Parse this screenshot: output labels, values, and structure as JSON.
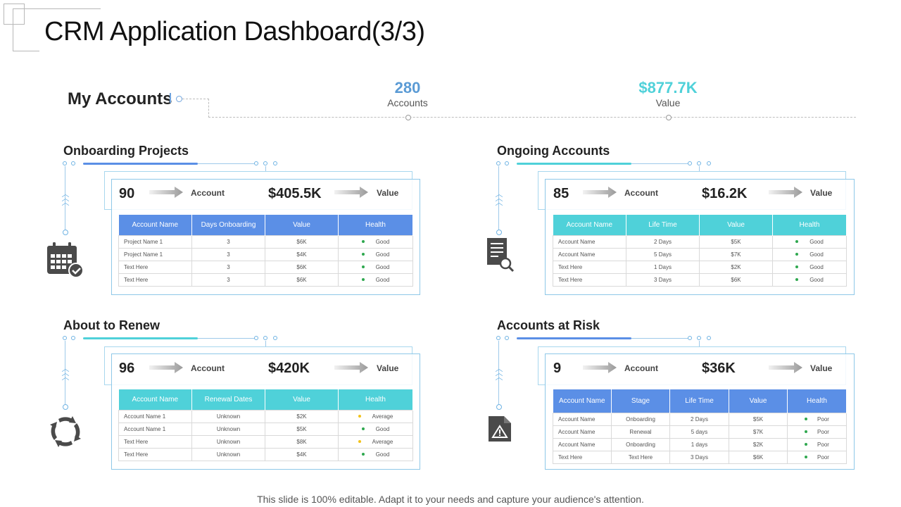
{
  "title": "CRM Application Dashboard(3/3)",
  "my_accounts": {
    "label": "My Accounts",
    "accounts_count": "280",
    "accounts_label": "Accounts",
    "value_amount": "$877.7K",
    "value_label": "Value"
  },
  "colors": {
    "blue": "#5b8fe6",
    "teal": "#4fd1d9",
    "green": "#2fa84f",
    "yellow": "#f2c21a",
    "count_blue": "#5b9bd5",
    "value_teal": "#4fd1d9"
  },
  "onboarding": {
    "title": "Onboarding Projects",
    "count": "90",
    "count_label": "Account",
    "amount": "$405.5K",
    "amount_label": "Value",
    "headers": [
      "Account Name",
      "Days Onboarding",
      "Value",
      "Health"
    ],
    "rows": [
      [
        "Project Name 1",
        "3",
        "$6K",
        "Good"
      ],
      [
        "Project Name 1",
        "3",
        "$4K",
        "Good"
      ],
      [
        "Text Here",
        "3",
        "$6K",
        "Good"
      ],
      [
        "Text Here",
        "3",
        "$6K",
        "Good"
      ]
    ],
    "icon": "calendar-check-icon"
  },
  "ongoing": {
    "title": "Ongoing Accounts",
    "count": "85",
    "count_label": "Account",
    "amount": "$16.2K",
    "amount_label": "Value",
    "headers": [
      "Account Name",
      "Life Time",
      "Value",
      "Health"
    ],
    "rows": [
      [
        "Account Name",
        "2 Days",
        "$5K",
        "Good"
      ],
      [
        "Account Name",
        "5 Days",
        "$7K",
        "Good"
      ],
      [
        "Text Here",
        "1 Days",
        "$2K",
        "Good"
      ],
      [
        "Text Here",
        "3 Days",
        "$6K",
        "Good"
      ]
    ],
    "icon": "document-search-icon"
  },
  "renew": {
    "title": "About to Renew",
    "count": "96",
    "count_label": "Account",
    "amount": "$420K",
    "amount_label": "Value",
    "headers": [
      "Account Name",
      "Renewal Dates",
      "Value",
      "Health"
    ],
    "rows": [
      [
        "Account Name 1",
        "Unknown",
        "$2K",
        "Average"
      ],
      [
        "Account Name 1",
        "Unknown",
        "$5K",
        "Good"
      ],
      [
        "Text Here",
        "Unknown",
        "$8K",
        "Average"
      ],
      [
        "Text Here",
        "Unknown",
        "$4K",
        "Good"
      ]
    ],
    "icon": "refresh-cycle-icon"
  },
  "risk": {
    "title": "Accounts at Risk",
    "count": "9",
    "count_label": "Account",
    "amount": "$36K",
    "amount_label": "Value",
    "headers": [
      "Account Name",
      "Stage",
      "Life Time",
      "Value",
      "Health"
    ],
    "rows": [
      [
        "Account Name",
        "Onboarding",
        "2 Days",
        "$5K",
        "Poor"
      ],
      [
        "Account Name",
        "Renewal",
        "5 days",
        "$7K",
        "Poor"
      ],
      [
        "Account Name",
        "Onboarding",
        "1 days",
        "$2K",
        "Poor"
      ],
      [
        "Text Here",
        "Text Here",
        "3 Days",
        "$6K",
        "Poor"
      ]
    ],
    "icon": "document-warning-icon"
  },
  "footer": "This slide is 100% editable. Adapt it to your needs and capture your audience's attention."
}
